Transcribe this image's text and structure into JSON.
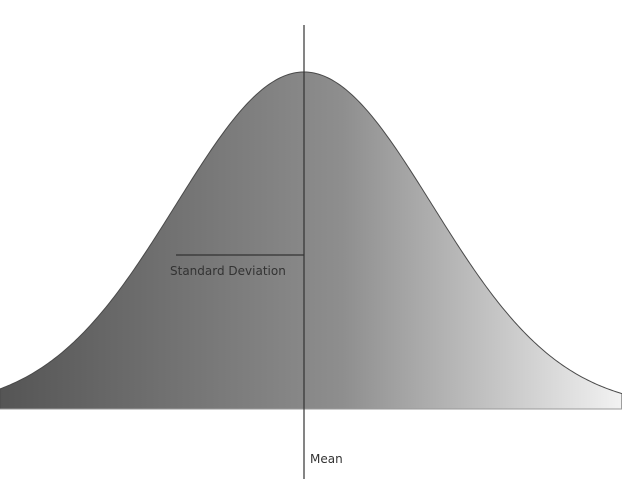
{
  "labels": {
    "std_dev": "Standard Deviation",
    "mean": "Mean"
  },
  "colors": {
    "gradient_dark": "#555555",
    "gradient_mid": "#8e8e8e",
    "gradient_light": "#f2f2f2",
    "curve_stroke": "#4a4a4a",
    "line": "#333333",
    "text": "#333333"
  }
}
